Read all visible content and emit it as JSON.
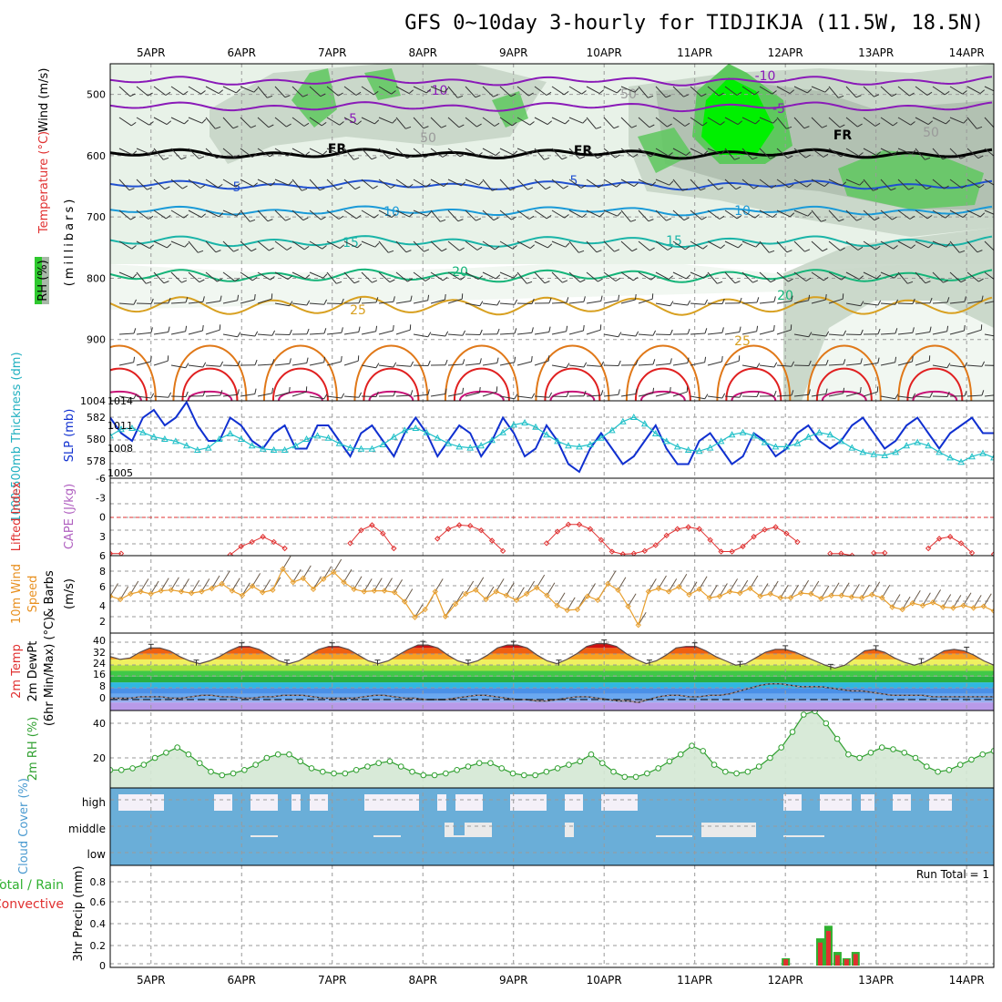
{
  "title": "GFS 0~10day 3-hourly for TIDJIKJA (11.5W, 18.5N)",
  "date_labels": [
    "5APR",
    "6APR",
    "7APR",
    "8APR",
    "9APR",
    "10APR",
    "11APR",
    "12APR",
    "13APR",
    "14APR"
  ],
  "run_total_label": "Run Total = 1",
  "colors": {
    "purple": "#8a1ab8",
    "black": "#000000",
    "blue1": "#2050d0",
    "blue2": "#1a9ad8",
    "teal": "#1ab4a8",
    "green": "#14b478",
    "orange1": "#d8a020",
    "orange2": "#e07818",
    "red": "#e02020",
    "magenta": "#c81478",
    "rh_light": "#e8f2e8",
    "rh_mid": "#c4d4c4",
    "rh_gray": "#a8b8a8",
    "rh_green": "#5ec85e",
    "rh_bright": "#00f000",
    "slp": "#1030d0",
    "thick": "#20c0c8",
    "li": "#e03030",
    "wind10": "#e8a030",
    "rh2m": "#30a030",
    "cloud": "#6aaed8",
    "cloud_gap": "#f4f0f8",
    "rain": "#e03030",
    "precip_total": "#30b030"
  },
  "panels": {
    "upper": {
      "ylabel_wind": "Wind (m/s)",
      "ylabel_temp": "Temperature (°C)",
      "ylabel_rh": "RH (%)",
      "ylabel_mb": "(millibars)",
      "yticks": [
        "500",
        "600",
        "700",
        "800",
        "900"
      ],
      "ylim": [
        1000,
        450
      ],
      "contour_labels": {
        "m10": "-10",
        "m5": "-5",
        "fr": "FR",
        "p5": "5",
        "p10": "10",
        "p15": "15",
        "p20": "20",
        "p25": "25",
        "rh50": "50",
        "rh20": "20"
      }
    },
    "slp": {
      "ylabel_thick": "1000-500mb Thickness (dm)",
      "ylabel_slp": "SLP (mb)",
      "yticks_left": [
        "582",
        "580",
        "578"
      ],
      "yticks_right": [
        "1014",
        "1011",
        "1008",
        "1005"
      ]
    },
    "li": {
      "ylabel_li": "Lifted Index",
      "ylabel_cape": "CAPE (J/kg)",
      "yticks": [
        "-6",
        "-3",
        "0",
        "3",
        "6"
      ]
    },
    "wind10": {
      "ylabel": "10m Wind Speed & Barbs (m/s)",
      "yticks": [
        "8",
        "6",
        "4",
        "2"
      ]
    },
    "temp2m": {
      "ylabel1": "2m Temp",
      "ylabel2": "2m DewPt",
      "ylabel3": "(6hr Min/Max) (°C)",
      "yticks": [
        "40",
        "32",
        "24",
        "16",
        "8",
        "0"
      ]
    },
    "rh2m": {
      "ylabel": "2m RH (%)",
      "yticks": [
        "40",
        "20"
      ]
    },
    "cloud": {
      "ylabel": "Cloud Cover (%)",
      "levels": [
        "high",
        "middle",
        "low"
      ]
    },
    "precip": {
      "ylabel1": "Total / Rain",
      "ylabel2": "Convective",
      "ylabel3": "3hr Precip (mm)",
      "yticks": [
        "0.8",
        "0.6",
        "0.4",
        "0.2",
        "0"
      ]
    }
  },
  "chart_data": {
    "type": "line",
    "x_unit": "forecast day",
    "day_ticks": [
      "5APR",
      "6APR",
      "7APR",
      "8APR",
      "9APR",
      "10APR",
      "11APR",
      "12APR",
      "13APR",
      "14APR"
    ],
    "x_range_days": [
      4.55,
      14.3
    ],
    "upper_air": {
      "temperature_isotherms_C": [
        -10,
        -5,
        0,
        5,
        10,
        15,
        20,
        25,
        30,
        35
      ],
      "freezing_level_mb_approx": 595,
      "pressure_range_mb": [
        450,
        1000
      ]
    },
    "slp_mb": [
      1012,
      1010,
      1009,
      1012,
      1013,
      1011,
      1012,
      1014,
      1011,
      1009,
      1009,
      1012,
      1011,
      1009,
      1008,
      1010,
      1011,
      1008,
      1008,
      1011,
      1011,
      1009,
      1007,
      1010,
      1011,
      1009,
      1007,
      1010,
      1012,
      1010,
      1007,
      1009,
      1011,
      1010,
      1007,
      1009,
      1012,
      1010,
      1007,
      1008,
      1011,
      1009,
      1006,
      1005,
      1008,
      1010,
      1008,
      1006,
      1007,
      1009,
      1011,
      1008,
      1006,
      1006,
      1009,
      1010,
      1008,
      1006,
      1007,
      1010,
      1009,
      1007,
      1008,
      1010,
      1011,
      1009,
      1008,
      1009,
      1011,
      1012,
      1010,
      1008,
      1009,
      1011,
      1012,
      1010,
      1008,
      1010,
      1011,
      1012,
      1010,
      1010
    ],
    "thickness_dm": [
      580.3,
      580.9,
      581.0,
      580.6,
      580.2,
      580.0,
      579.8,
      579.4,
      579.0,
      579.2,
      580.0,
      580.5,
      580.0,
      579.4,
      579.1,
      579.0,
      579.0,
      579.4,
      580.0,
      580.3,
      580.1,
      579.6,
      579.2,
      579.1,
      579.1,
      579.5,
      580.2,
      580.8,
      581.0,
      580.6,
      580.1,
      579.6,
      579.3,
      579.2,
      579.4,
      579.9,
      580.6,
      581.3,
      581.5,
      581.1,
      580.4,
      579.8,
      579.4,
      579.3,
      579.5,
      580.1,
      580.8,
      581.6,
      582.0,
      581.4,
      580.5,
      579.8,
      579.3,
      579.0,
      578.9,
      579.2,
      579.8,
      580.4,
      580.6,
      580.3,
      579.7,
      579.3,
      579.3,
      579.6,
      580.2,
      580.6,
      580.4,
      579.8,
      579.2,
      578.8,
      578.6,
      578.5,
      578.8,
      579.4,
      579.7,
      579.4,
      578.8,
      578.3,
      577.9,
      578.4,
      578.7,
      578.3
    ],
    "lifted_index": [
      5.6,
      5.6,
      null,
      null,
      null,
      null,
      null,
      null,
      null,
      null,
      null,
      5.8,
      4.5,
      3.8,
      3.0,
      3.8,
      4.8,
      null,
      null,
      null,
      null,
      null,
      4.0,
      2.0,
      1.2,
      2.5,
      4.8,
      null,
      null,
      null,
      3.3,
      1.8,
      1.2,
      1.3,
      2.0,
      3.6,
      5.2,
      null,
      null,
      null,
      4.0,
      2.2,
      1.1,
      1.1,
      1.8,
      3.5,
      5.3,
      5.7,
      5.6,
      5.2,
      4.3,
      2.8,
      1.8,
      1.5,
      1.8,
      3.5,
      5.3,
      5.3,
      4.5,
      3.0,
      1.9,
      1.5,
      2.5,
      3.8,
      null,
      null,
      5.6,
      5.6,
      5.9,
      null,
      5.5,
      5.5,
      null,
      null,
      null,
      4.8,
      3.3,
      3.0,
      4.0,
      5.5,
      null,
      5.7
    ],
    "wind10m_ms": [
      5.2,
      4.8,
      5.5,
      5.8,
      5.5,
      5.9,
      6.0,
      5.8,
      5.6,
      5.8,
      6.2,
      6.8,
      5.9,
      5.3,
      6.5,
      5.7,
      6.0,
      8.7,
      7.0,
      7.5,
      6.1,
      7.4,
      8.3,
      7.0,
      6.1,
      5.8,
      5.9,
      5.9,
      5.7,
      4.5,
      2.5,
      3.5,
      5.8,
      2.6,
      4.2,
      5.5,
      6.0,
      4.8,
      5.8,
      5.3,
      4.7,
      5.5,
      6.3,
      5.3,
      4.0,
      3.4,
      3.5,
      5.2,
      4.7,
      6.8,
      6.0,
      3.9,
      1.5,
      5.8,
      6.2,
      5.8,
      6.4,
      5.4,
      6.1,
      5.0,
      5.2,
      5.8,
      5.6,
      6.2,
      5.2,
      5.5,
      5.0,
      5.0,
      5.6,
      5.5,
      4.9,
      5.3,
      5.3,
      5.1,
      5.0,
      5.4,
      5.0,
      3.8,
      3.5,
      4.3,
      4.0,
      4.4,
      3.8,
      3.7,
      4.0,
      3.7,
      3.9,
      3.3
    ],
    "temp2m_C": [
      30,
      28,
      29,
      33,
      36,
      36,
      34,
      30,
      27,
      25,
      27,
      30,
      34,
      37,
      37,
      35,
      31,
      27,
      25,
      27,
      31,
      35,
      37,
      37,
      35,
      31,
      27,
      25,
      27,
      31,
      35,
      38,
      38,
      36,
      31,
      27,
      25,
      27,
      31,
      36,
      38,
      38,
      36,
      31,
      27,
      25,
      28,
      32,
      37,
      39,
      39,
      37,
      32,
      28,
      25,
      27,
      31,
      36,
      37,
      37,
      34,
      30,
      27,
      24,
      25,
      29,
      33,
      35,
      35,
      33,
      30,
      27,
      24,
      22,
      24,
      29,
      34,
      35,
      33,
      29,
      26,
      24,
      26,
      30,
      34,
      35,
      34,
      31,
      27,
      24
    ],
    "dewpt2m_C": [
      1,
      1,
      1,
      2,
      2,
      2,
      1,
      1,
      2,
      3,
      3,
      2,
      2,
      1,
      1,
      2,
      2,
      3,
      3,
      3,
      2,
      1,
      1,
      1,
      1,
      2,
      3,
      3,
      2,
      1,
      1,
      0,
      0,
      0,
      1,
      2,
      3,
      3,
      2,
      1,
      0,
      0,
      -1,
      -1,
      0,
      1,
      2,
      2,
      1,
      0,
      -1,
      -1,
      -2,
      0,
      2,
      3,
      3,
      2,
      2,
      3,
      3,
      4,
      6,
      8,
      10,
      11,
      11,
      10,
      9,
      9,
      9,
      8,
      7,
      6,
      6,
      5,
      4,
      3,
      3,
      3,
      3,
      2,
      2,
      2,
      2,
      2,
      2,
      2
    ],
    "rh2m_pct": [
      13,
      13,
      14,
      16,
      20,
      23,
      26,
      22,
      17,
      12,
      10,
      11,
      13,
      16,
      20,
      22,
      22,
      18,
      14,
      12,
      11,
      11,
      13,
      15,
      17,
      18,
      15,
      12,
      10,
      10,
      11,
      13,
      15,
      17,
      17,
      14,
      11,
      10,
      10,
      12,
      14,
      16,
      18,
      22,
      17,
      12,
      9,
      9,
      11,
      14,
      18,
      22,
      27,
      24,
      16,
      12,
      11,
      12,
      15,
      20,
      26,
      35,
      45,
      47,
      40,
      31,
      22,
      20,
      23,
      26,
      25,
      23,
      20,
      15,
      12,
      13,
      16,
      19,
      22,
      24
    ],
    "cloud_cover": {
      "high": "mostly overcast with clear gaps",
      "middle": "mostly overcast",
      "low": "overcast"
    },
    "precip_3hr_mm": {
      "days": [
        12.0,
        12.38,
        12.47,
        12.57,
        12.67,
        12.77
      ],
      "total": [
        0.07,
        0.26,
        0.38,
        0.13,
        0.07,
        0.13
      ],
      "convective": [
        0.06,
        0.22,
        0.33,
        0.1,
        0.06,
        0.11
      ]
    },
    "run_total": 1
  }
}
